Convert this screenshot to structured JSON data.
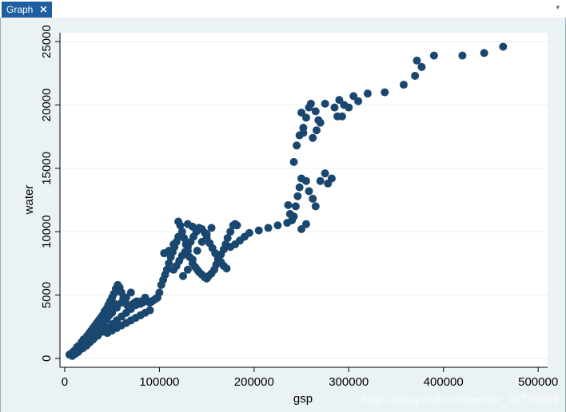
{
  "tab": {
    "title": "Graph",
    "close_glyph": "✕"
  },
  "dropdown_glyph": "▾",
  "watermark": "https://blog.csdn.net/weixin_44723899",
  "colors": {
    "marker": "#1a476f",
    "plot_bg": "#ffffff",
    "outer_bg": "#eaf2f3",
    "grid": "#eaf2f3",
    "tab": "#1f5fa0"
  },
  "chart_data": {
    "type": "scatter",
    "title": "",
    "xlabel": "gsp",
    "ylabel": "water",
    "xlim": [
      -5000,
      510000
    ],
    "ylim": [
      -700,
      25700
    ],
    "xticks": [
      0,
      100000,
      200000,
      300000,
      400000,
      500000
    ],
    "yticks": [
      0,
      5000,
      10000,
      15000,
      20000,
      25000
    ],
    "grid": true,
    "legend": "none",
    "series": [
      {
        "points": [
          [
            5000,
            300
          ],
          [
            7000,
            400
          ],
          [
            9000,
            500
          ],
          [
            10000,
            600
          ],
          [
            12000,
            700
          ],
          [
            13000,
            900
          ],
          [
            15000,
            1000
          ],
          [
            17000,
            1100
          ],
          [
            18000,
            1300
          ],
          [
            20000,
            1500
          ],
          [
            22000,
            1600
          ],
          [
            24000,
            1800
          ],
          [
            26000,
            2000
          ],
          [
            28000,
            2200
          ],
          [
            30000,
            2400
          ],
          [
            32000,
            2600
          ],
          [
            34000,
            2800
          ],
          [
            36000,
            3000
          ],
          [
            38000,
            3200
          ],
          [
            40000,
            3400
          ],
          [
            42000,
            3700
          ],
          [
            44000,
            3900
          ],
          [
            46000,
            4200
          ],
          [
            48000,
            4500
          ],
          [
            50000,
            4800
          ],
          [
            52000,
            5100
          ],
          [
            54000,
            5500
          ],
          [
            56000,
            5800
          ],
          [
            58000,
            5600
          ],
          [
            60000,
            5200
          ],
          [
            62000,
            4800
          ],
          [
            64000,
            4400
          ],
          [
            66000,
            4200
          ],
          [
            68000,
            4000
          ],
          [
            70000,
            4100
          ],
          [
            72000,
            4300
          ],
          [
            74000,
            4400
          ],
          [
            76000,
            4500
          ],
          [
            78000,
            4400
          ],
          [
            80000,
            4300
          ],
          [
            82000,
            4400
          ],
          [
            84000,
            4500
          ],
          [
            86000,
            4600
          ],
          [
            88000,
            4500
          ],
          [
            90000,
            4400
          ],
          [
            92000,
            4500
          ],
          [
            94000,
            4600
          ],
          [
            96000,
            4700
          ],
          [
            98000,
            4800
          ],
          [
            100000,
            5200
          ],
          [
            102000,
            5800
          ],
          [
            104000,
            6200
          ],
          [
            106000,
            6600
          ],
          [
            108000,
            7000
          ],
          [
            110000,
            7500
          ],
          [
            112000,
            8000
          ],
          [
            114000,
            8400
          ],
          [
            116000,
            8800
          ],
          [
            118000,
            9200
          ],
          [
            120000,
            9600
          ],
          [
            15000,
            600
          ],
          [
            20000,
            900
          ],
          [
            25000,
            1200
          ],
          [
            30000,
            1500
          ],
          [
            35000,
            1800
          ],
          [
            40000,
            2100
          ],
          [
            45000,
            2400
          ],
          [
            50000,
            2700
          ],
          [
            55000,
            3000
          ],
          [
            60000,
            3300
          ],
          [
            65000,
            3600
          ],
          [
            70000,
            3900
          ],
          [
            75000,
            4200
          ],
          [
            80000,
            4500
          ],
          [
            85000,
            4800
          ],
          [
            25000,
            1800
          ],
          [
            30000,
            2100
          ],
          [
            35000,
            2500
          ],
          [
            40000,
            2900
          ],
          [
            45000,
            3200
          ],
          [
            50000,
            3600
          ],
          [
            55000,
            4000
          ],
          [
            60000,
            4400
          ],
          [
            65000,
            4800
          ],
          [
            70000,
            5200
          ],
          [
            45000,
            2000
          ],
          [
            50000,
            2200
          ],
          [
            55000,
            2400
          ],
          [
            60000,
            2600
          ],
          [
            65000,
            2800
          ],
          [
            70000,
            3000
          ],
          [
            75000,
            3200
          ],
          [
            80000,
            3400
          ],
          [
            85000,
            3600
          ],
          [
            90000,
            3800
          ],
          [
            8000,
            200
          ],
          [
            11000,
            350
          ],
          [
            14000,
            500
          ],
          [
            16000,
            700
          ],
          [
            19000,
            800
          ],
          [
            23000,
            1000
          ],
          [
            27000,
            1300
          ],
          [
            31000,
            1600
          ],
          [
            33000,
            1900
          ],
          [
            37000,
            2300
          ],
          [
            41000,
            2600
          ],
          [
            43000,
            3000
          ],
          [
            47000,
            3400
          ],
          [
            49000,
            3800
          ],
          [
            53000,
            4300
          ],
          [
            105000,
            8300
          ],
          [
            110000,
            8500
          ],
          [
            115000,
            9000
          ],
          [
            120000,
            10800
          ],
          [
            122000,
            10500
          ],
          [
            124000,
            10000
          ],
          [
            126000,
            9500
          ],
          [
            128000,
            9000
          ],
          [
            130000,
            8500
          ],
          [
            132000,
            8000
          ],
          [
            135000,
            7500
          ],
          [
            138000,
            7200
          ],
          [
            140000,
            7000
          ],
          [
            142000,
            6800
          ],
          [
            145000,
            6600
          ],
          [
            148000,
            6400
          ],
          [
            150000,
            6300
          ],
          [
            152000,
            6500
          ],
          [
            155000,
            6700
          ],
          [
            158000,
            7000
          ],
          [
            160000,
            7400
          ],
          [
            162000,
            7800
          ],
          [
            165000,
            8200
          ],
          [
            168000,
            8600
          ],
          [
            170000,
            9000
          ],
          [
            172000,
            9500
          ],
          [
            175000,
            10000
          ],
          [
            178000,
            10500
          ],
          [
            180000,
            10600
          ],
          [
            182000,
            10500
          ],
          [
            115000,
            7000
          ],
          [
            118000,
            7300
          ],
          [
            121000,
            7700
          ],
          [
            124000,
            8100
          ],
          [
            127000,
            8400
          ],
          [
            130000,
            8800
          ],
          [
            133000,
            9200
          ],
          [
            136000,
            9600
          ],
          [
            139000,
            10000
          ],
          [
            142000,
            10300
          ],
          [
            145000,
            10200
          ],
          [
            148000,
            9900
          ],
          [
            150000,
            9500
          ],
          [
            153000,
            9100
          ],
          [
            156000,
            8700
          ],
          [
            159000,
            8300
          ],
          [
            162000,
            7900
          ],
          [
            165000,
            7600
          ],
          [
            168000,
            7300
          ],
          [
            171000,
            7100
          ],
          [
            125000,
            6500
          ],
          [
            130000,
            7000
          ],
          [
            135000,
            7800
          ],
          [
            140000,
            8500
          ],
          [
            145000,
            9200
          ],
          [
            150000,
            9800
          ],
          [
            155000,
            10300
          ],
          [
            135000,
            10400
          ],
          [
            140000,
            10200
          ],
          [
            130000,
            10600
          ],
          [
            175000,
            8800
          ],
          [
            180000,
            9000
          ],
          [
            185000,
            9300
          ],
          [
            190000,
            9600
          ],
          [
            195000,
            9900
          ],
          [
            205000,
            10100
          ],
          [
            215000,
            10300
          ],
          [
            225000,
            10500
          ],
          [
            235000,
            10700
          ],
          [
            240000,
            10900
          ],
          [
            242000,
            11200
          ],
          [
            244000,
            12000
          ],
          [
            246000,
            12800
          ],
          [
            248000,
            13500
          ],
          [
            250000,
            14200
          ],
          [
            242000,
            15500
          ],
          [
            245000,
            16800
          ],
          [
            248000,
            17600
          ],
          [
            252000,
            18200
          ],
          [
            255000,
            19000
          ],
          [
            258000,
            19800
          ],
          [
            260000,
            20100
          ],
          [
            265000,
            19500
          ],
          [
            268000,
            18800
          ],
          [
            255000,
            14000
          ],
          [
            258000,
            13200
          ],
          [
            262000,
            12600
          ],
          [
            265000,
            12000
          ],
          [
            270000,
            14000
          ],
          [
            275000,
            14600
          ],
          [
            278000,
            13800
          ],
          [
            282000,
            14200
          ],
          [
            262000,
            17400
          ],
          [
            266000,
            18000
          ],
          [
            270000,
            18600
          ],
          [
            275000,
            20100
          ],
          [
            285000,
            19800
          ],
          [
            290000,
            20400
          ],
          [
            295000,
            20000
          ],
          [
            300000,
            19800
          ],
          [
            305000,
            20700
          ],
          [
            310000,
            20300
          ],
          [
            320000,
            20900
          ],
          [
            338000,
            21000
          ],
          [
            358000,
            21600
          ],
          [
            370000,
            22300
          ],
          [
            372000,
            23500
          ],
          [
            377000,
            23000
          ],
          [
            390000,
            23900
          ],
          [
            420000,
            23900
          ],
          [
            443000,
            24100
          ],
          [
            463000,
            24600
          ],
          [
            250000,
            19400
          ],
          [
            252000,
            17800
          ],
          [
            288000,
            19100
          ],
          [
            293000,
            19100
          ],
          [
            250000,
            10200
          ],
          [
            255000,
            10600
          ],
          [
            238000,
            11400
          ],
          [
            236000,
            12100
          ]
        ]
      }
    ]
  }
}
